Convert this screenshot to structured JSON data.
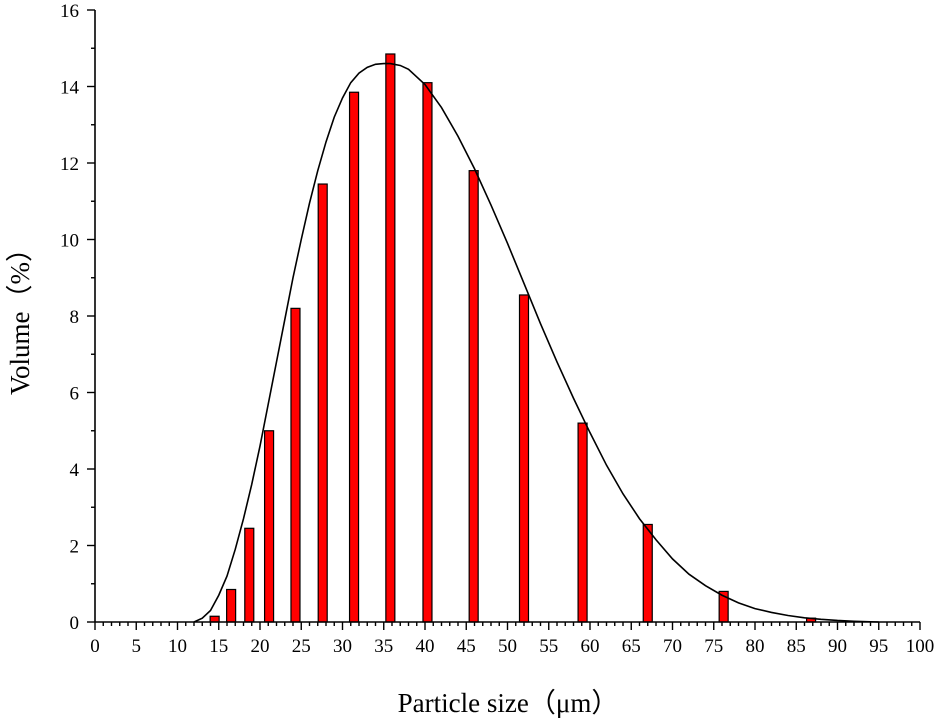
{
  "chart_data": {
    "type": "bar",
    "title": "",
    "xlabel": "Particle size（μm）",
    "ylabel": "Volume（%）",
    "xlim": [
      0,
      100
    ],
    "ylim": [
      0,
      16
    ],
    "x_ticks": [
      "0",
      "5",
      "10",
      "15",
      "20",
      "25",
      "30",
      "35",
      "40",
      "45",
      "50",
      "55",
      "60",
      "65",
      "70",
      "75",
      "80",
      "85",
      "90",
      "95",
      "100"
    ],
    "y_ticks": [
      "0",
      "2",
      "4",
      "6",
      "8",
      "10",
      "12",
      "14",
      "16"
    ],
    "colors": {
      "bar": "#ff0000",
      "bar_edge": "#000000",
      "curve": "#000000"
    },
    "series": [
      {
        "type": "bar",
        "x": [
          14.5,
          16.5,
          18.7,
          21.1,
          24.3,
          27.6,
          31.4,
          35.8,
          40.3,
          45.9,
          52.0,
          59.1,
          67.0,
          76.2,
          86.8
        ],
        "values": [
          0.15,
          0.85,
          2.45,
          5.0,
          8.2,
          11.45,
          13.85,
          14.85,
          14.1,
          11.8,
          8.55,
          5.2,
          2.55,
          0.8,
          0.1
        ]
      },
      {
        "type": "line",
        "x": [
          12,
          13,
          14,
          15,
          16,
          17,
          18,
          19,
          20,
          21,
          22,
          23,
          24,
          25,
          26,
          27,
          28,
          29,
          30,
          31,
          32,
          33,
          34,
          35,
          35.8,
          37,
          38,
          40,
          42,
          44,
          46,
          48,
          50,
          52,
          54,
          56,
          58,
          60,
          62,
          64,
          66,
          68,
          70,
          72,
          74,
          76,
          78,
          80,
          82,
          84,
          86,
          88,
          90,
          92,
          95
        ],
        "values": [
          0.0,
          0.1,
          0.3,
          0.7,
          1.2,
          1.9,
          2.7,
          3.6,
          4.6,
          5.7,
          6.8,
          7.9,
          9.0,
          10.0,
          10.95,
          11.8,
          12.55,
          13.2,
          13.7,
          14.1,
          14.35,
          14.5,
          14.58,
          14.6,
          14.6,
          14.55,
          14.45,
          14.05,
          13.45,
          12.7,
          11.85,
          10.9,
          9.9,
          8.85,
          7.8,
          6.8,
          5.85,
          4.95,
          4.1,
          3.35,
          2.7,
          2.15,
          1.65,
          1.25,
          0.95,
          0.7,
          0.5,
          0.35,
          0.25,
          0.17,
          0.11,
          0.07,
          0.04,
          0.02,
          0.0
        ]
      }
    ]
  }
}
